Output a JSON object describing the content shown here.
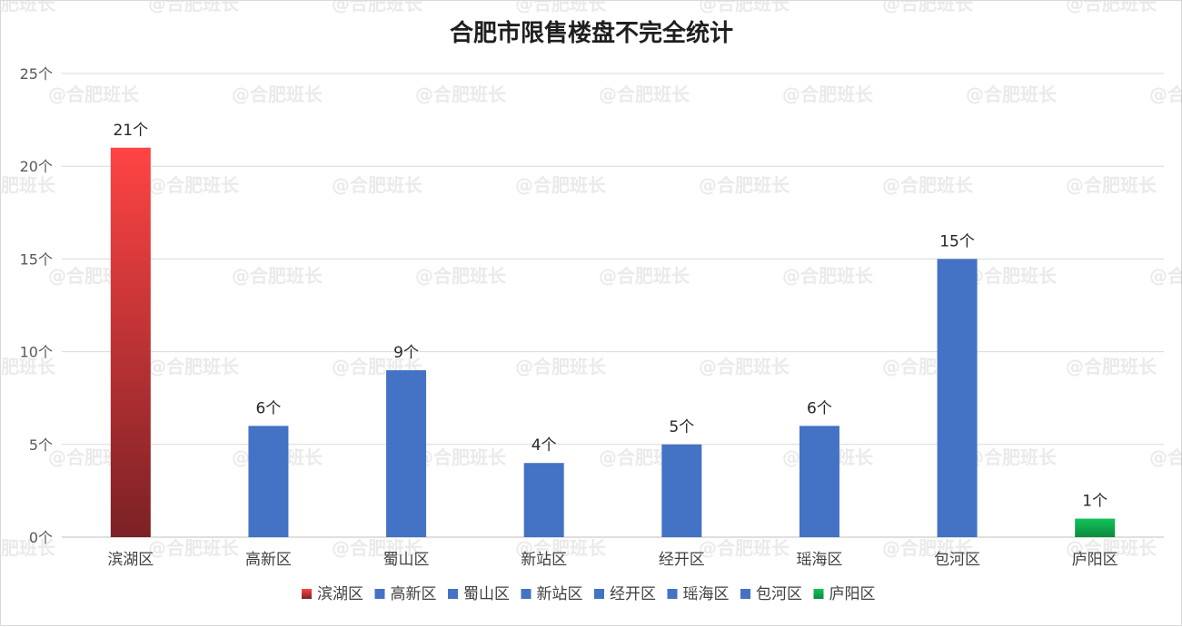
{
  "watermark": {
    "text": "@合肥班长"
  },
  "chart_data": {
    "type": "bar",
    "title": "合肥市限售楼盘不完全统计",
    "xlabel": "",
    "ylabel": "",
    "categories": [
      "滨湖区",
      "高新区",
      "蜀山区",
      "新站区",
      "经开区",
      "瑶海区",
      "包河区",
      "庐阳区"
    ],
    "values": [
      21,
      6,
      9,
      4,
      5,
      6,
      15,
      1
    ],
    "data_label_suffix": "个",
    "ylim": [
      0,
      25
    ],
    "yticks": [
      0,
      5,
      10,
      15,
      20,
      25
    ],
    "ytick_labels": [
      "0个",
      "5个",
      "10个",
      "15个",
      "20个",
      "25个"
    ],
    "grid": true,
    "legend": {
      "position": "bottom",
      "entries": [
        "滨湖区",
        "高新区",
        "蜀山区",
        "新站区",
        "经开区",
        "瑶海区",
        "包河区",
        "庐阳区"
      ]
    },
    "colors": {
      "highlight_top": "#ff4444",
      "highlight_bottom": "#7b2125",
      "default": "#4472c4",
      "last_top": "#12c35a",
      "last_bottom": "#0d8a3e",
      "grid": "#d9d9d9",
      "axis": "#bfbfbf"
    },
    "bar_styles": [
      "red-gradient",
      "blue",
      "blue",
      "blue",
      "blue",
      "blue",
      "blue",
      "green-gradient"
    ]
  }
}
